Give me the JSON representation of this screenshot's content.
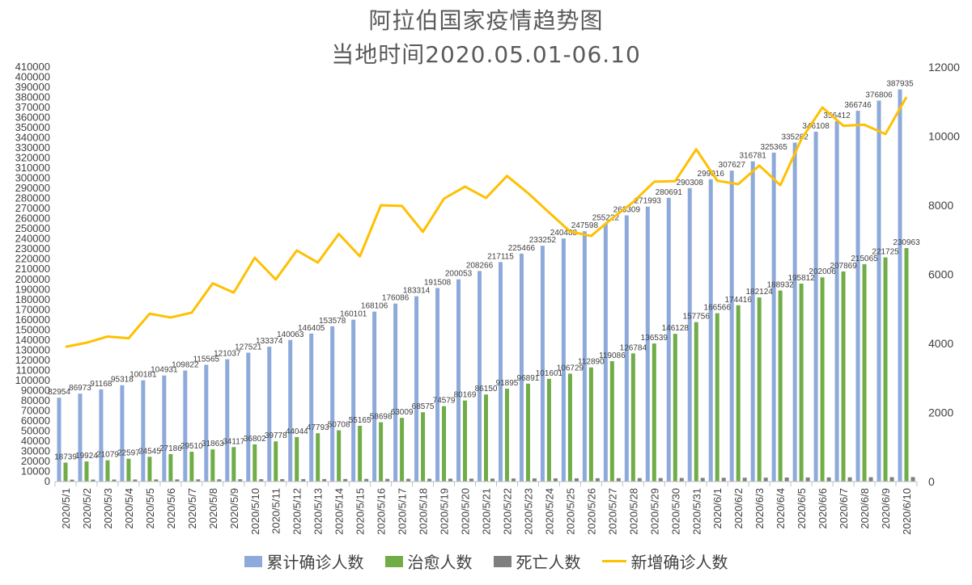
{
  "chart_data": {
    "type": "bar",
    "title": "阿拉伯国家疫情趋势图",
    "subtitle": "当地时间2020.05.01-06.10",
    "categories": [
      "2020/5/1",
      "2020/5/2",
      "2020/5/3",
      "2020/5/4",
      "2020/5/5",
      "2020/5/6",
      "2020/5/7",
      "2020/5/8",
      "2020/5/9",
      "2020/5/10",
      "2020/5/11",
      "2020/5/12",
      "2020/5/13",
      "2020/5/14",
      "2020/5/15",
      "2020/5/16",
      "2020/5/17",
      "2020/5/18",
      "2020/5/19",
      "2020/5/20",
      "2020/5/21",
      "2020/5/22",
      "2020/5/23",
      "2020/5/24",
      "2020/5/25",
      "2020/5/26",
      "2020/5/27",
      "2020/5/28",
      "2020/5/29",
      "2020/5/30",
      "2020/5/31",
      "2020/6/1",
      "2020/6/2",
      "2020/6/3",
      "2020/6/4",
      "2020/6/5",
      "2020/6/6",
      "2020/6/7",
      "2020/6/8",
      "2020/6/9",
      "2020/6/10"
    ],
    "series": [
      {
        "name": "累计确诊人数",
        "type": "bar",
        "axis": "left",
        "color": "#8eaadb",
        "values": [
          82954,
          86973,
          91168,
          95318,
          100181,
          104931,
          109822,
          115565,
          121037,
          127521,
          133374,
          140063,
          146405,
          153578,
          160101,
          168106,
          176086,
          183314,
          191508,
          200053,
          208266,
          217115,
          225466,
          233252,
          240488,
          247598,
          255222,
          263309,
          271993,
          280691,
          290308,
          299016,
          307627,
          316781,
          325365,
          335282,
          346108,
          356412,
          366746,
          376806,
          387935
        ],
        "labels": [
          "82954",
          "86973",
          "91168",
          "95318",
          "100181",
          "104931",
          "109822",
          "115565",
          "121037",
          "127521",
          "133374",
          "140063",
          "146405",
          "153578",
          "160101",
          "168106",
          "176086",
          "183314",
          "191508",
          "200053",
          "208266",
          "217115",
          "225466",
          "233252",
          "240488",
          "247598",
          "255222",
          "263309",
          "271993",
          "280691",
          "290308",
          "299016",
          "307627",
          "316781",
          "325365",
          "335282",
          "346108",
          "356412",
          "366746",
          "376806",
          "387935"
        ]
      },
      {
        "name": "治愈人数",
        "type": "bar",
        "axis": "left",
        "color": "#70ad47",
        "values": [
          18739,
          19924,
          21079,
          22597,
          24545,
          27186,
          29510,
          31863,
          34117,
          36802,
          39778,
          44044,
          47793,
          50708,
          55165,
          58698,
          63009,
          68575,
          74579,
          80169,
          86150,
          91895,
          96891,
          101601,
          106729,
          112890,
          119086,
          126784,
          136539,
          146128,
          157756,
          166566,
          174416,
          182124,
          188932,
          195812,
          202006,
          207869,
          215065,
          221725,
          230963
        ],
        "labels": [
          "18739",
          "19924",
          "21079",
          "22597",
          "24545",
          "27186",
          "29510",
          "31863",
          "34117",
          "36802",
          "39778",
          "44044",
          "47793",
          "50708",
          "55165",
          "58698",
          "63009",
          "68575",
          "74579",
          "80169",
          "86150",
          "91895",
          "96891",
          "101601",
          "106729",
          "112890",
          "119086",
          "126784",
          "136539",
          "146128",
          "157756",
          "166566",
          "174416",
          "182124",
          "188932",
          "195812",
          "202006",
          "207869",
          "215065",
          "221725",
          "230963"
        ]
      },
      {
        "name": "死亡人数",
        "type": "bar",
        "axis": "left",
        "color": "#7f7f7f",
        "values": [
          1900,
          1950,
          2000,
          2050,
          2110,
          2150,
          2200,
          2250,
          2300,
          2350,
          2400,
          2450,
          2500,
          2560,
          2620,
          2680,
          2740,
          2800,
          2860,
          2920,
          2980,
          3050,
          3110,
          3170,
          3230,
          3290,
          3350,
          3420,
          3490,
          3560,
          3640,
          3720,
          3800,
          3880,
          3960,
          4040,
          4120,
          4200,
          4280,
          4360,
          4450
        ]
      },
      {
        "name": "新增确诊人数",
        "type": "line",
        "axis": "right",
        "color": "#ffc000",
        "values": [
          3900,
          4020,
          4200,
          4150,
          4860,
          4750,
          4890,
          5740,
          5470,
          6480,
          5850,
          6690,
          6340,
          7170,
          6520,
          8000,
          7980,
          7230,
          8190,
          8540,
          8210,
          8850,
          8350,
          7790,
          7240,
          7110,
          7620,
          8090,
          8680,
          8700,
          9620,
          8710,
          8610,
          9150,
          8580,
          9910,
          10830,
          10300,
          10330,
          10060,
          11130
        ]
      }
    ],
    "y_left": {
      "ylim": [
        0,
        410000
      ],
      "ticks": [
        "0",
        "10000",
        "20000",
        "30000",
        "40000",
        "50000",
        "60000",
        "70000",
        "80000",
        "90000",
        "100000",
        "110000",
        "120000",
        "130000",
        "140000",
        "150000",
        "160000",
        "170000",
        "180000",
        "190000",
        "200000",
        "210000",
        "220000",
        "230000",
        "240000",
        "250000",
        "260000",
        "270000",
        "280000",
        "290000",
        "300000",
        "310000",
        "320000",
        "330000",
        "340000",
        "350000",
        "360000",
        "370000",
        "380000",
        "390000",
        "400000",
        "410000"
      ]
    },
    "y_right": {
      "ylim": [
        0,
        12000
      ],
      "ticks": [
        "0",
        "2000",
        "4000",
        "6000",
        "8000",
        "10000",
        "12000"
      ]
    },
    "legend": "bottom",
    "grid": false
  }
}
